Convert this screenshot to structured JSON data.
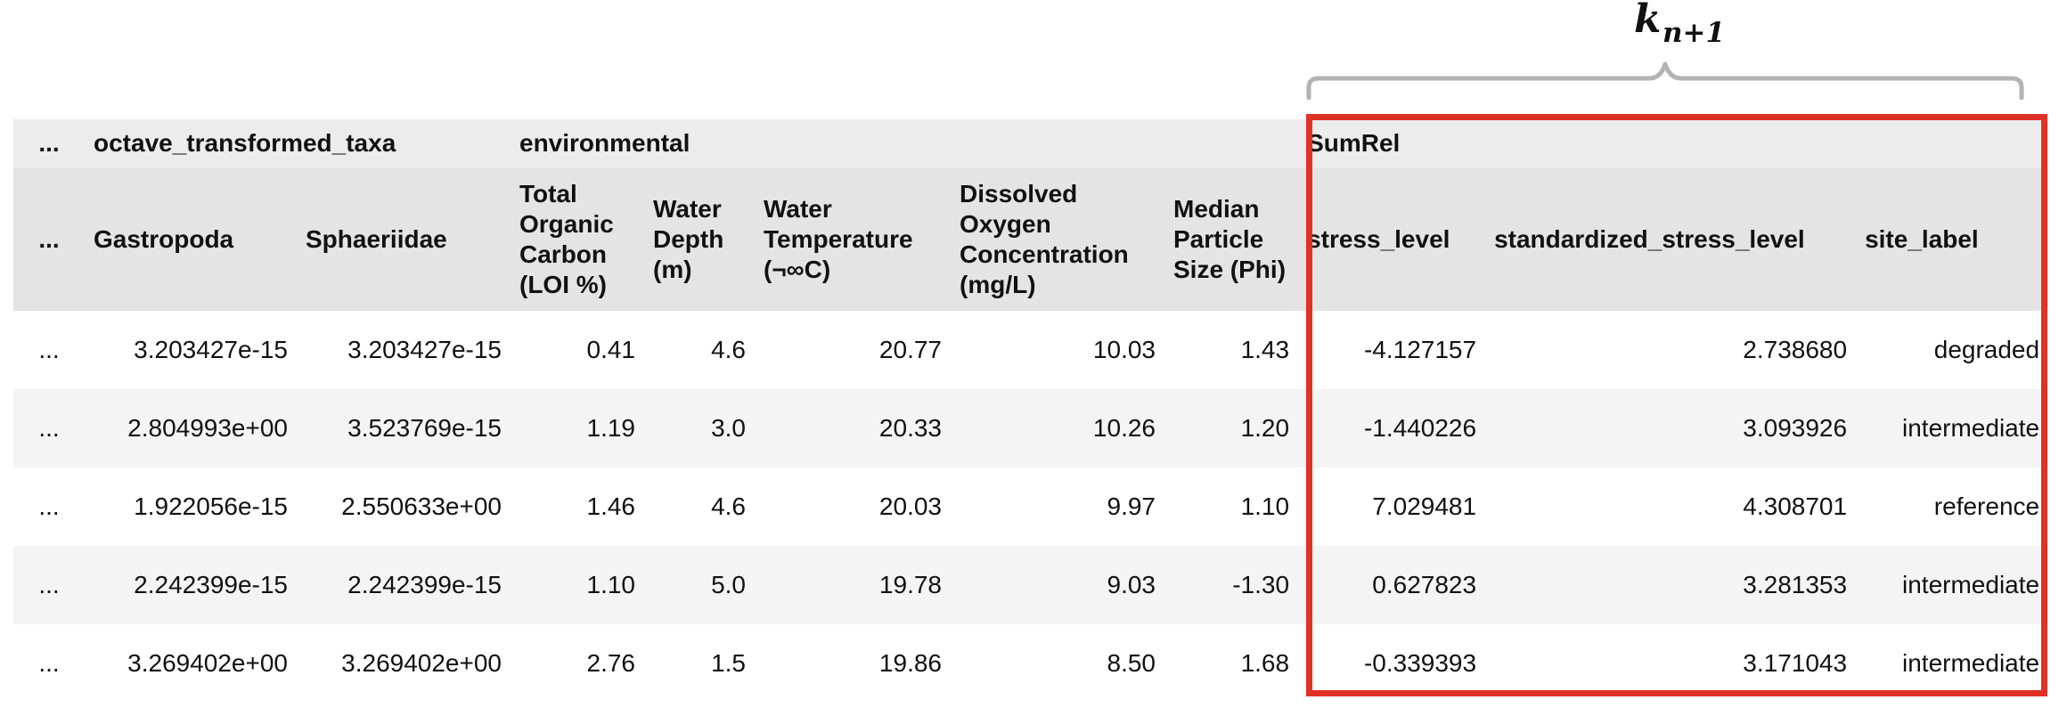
{
  "annotation": {
    "k_base": "k",
    "k_subscript": "n+1",
    "bracket_color": "#b3b3b3",
    "highlight_color": "#e03127"
  },
  "table": {
    "group_headers": {
      "ellipsis": "...",
      "octave": "octave_transformed_taxa",
      "environmental": "environmental",
      "sumrel": "SumRel"
    },
    "columns": {
      "ellipsis": "...",
      "gastropoda": "Gastropoda",
      "sphaeriidae": "Sphaeriidae",
      "toc": "Total Organic Carbon (LOI %)",
      "depth": "Water Depth (m)",
      "temp": "Water Temperature (¬∞C)",
      "do": "Dissolved Oxygen Concentration (mg/L)",
      "phi": "Median Particle Size (Phi)",
      "stress": "stress_level",
      "std_stress": "standardized_stress_level",
      "site": "site_label"
    },
    "rows": [
      {
        "ellipsis": "...",
        "gastropoda": "3.203427e-15",
        "sphaeriidae": "3.203427e-15",
        "toc": "0.41",
        "depth": "4.6",
        "temp": "20.77",
        "do": "10.03",
        "phi": "1.43",
        "stress": "-4.127157",
        "std_stress": "2.738680",
        "site": "degraded"
      },
      {
        "ellipsis": "...",
        "gastropoda": "2.804993e+00",
        "sphaeriidae": "3.523769e-15",
        "toc": "1.19",
        "depth": "3.0",
        "temp": "20.33",
        "do": "10.26",
        "phi": "1.20",
        "stress": "-1.440226",
        "std_stress": "3.093926",
        "site": "intermediate"
      },
      {
        "ellipsis": "...",
        "gastropoda": "1.922056e-15",
        "sphaeriidae": "2.550633e+00",
        "toc": "1.46",
        "depth": "4.6",
        "temp": "20.03",
        "do": "9.97",
        "phi": "1.10",
        "stress": "7.029481",
        "std_stress": "4.308701",
        "site": "reference"
      },
      {
        "ellipsis": "...",
        "gastropoda": "2.242399e-15",
        "sphaeriidae": "2.242399e-15",
        "toc": "1.10",
        "depth": "5.0",
        "temp": "19.78",
        "do": "9.03",
        "phi": "-1.30",
        "stress": "0.627823",
        "std_stress": "3.281353",
        "site": "intermediate"
      },
      {
        "ellipsis": "...",
        "gastropoda": "3.269402e+00",
        "sphaeriidae": "3.269402e+00",
        "toc": "2.76",
        "depth": "1.5",
        "temp": "19.86",
        "do": "8.50",
        "phi": "1.68",
        "stress": "-0.339393",
        "std_stress": "3.171043",
        "site": "intermediate"
      }
    ]
  }
}
